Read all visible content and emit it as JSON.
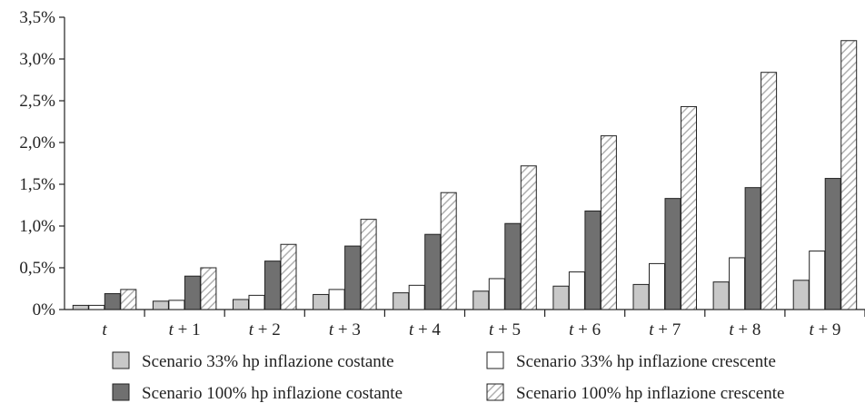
{
  "chart_data": {
    "type": "bar",
    "categories": [
      "t",
      "t + 1",
      "t + 2",
      "t + 3",
      "t + 4",
      "t + 5",
      "t + 6",
      "t + 7",
      "t + 8",
      "t + 9"
    ],
    "category_parts": [
      {
        "t": "t",
        "rest": ""
      },
      {
        "t": "t",
        "rest": " + 1"
      },
      {
        "t": "t",
        "rest": " + 2"
      },
      {
        "t": "t",
        "rest": " + 3"
      },
      {
        "t": "t",
        "rest": " + 4"
      },
      {
        "t": "t",
        "rest": " + 5"
      },
      {
        "t": "t",
        "rest": " + 6"
      },
      {
        "t": "t",
        "rest": " + 7"
      },
      {
        "t": "t",
        "rest": " + 8"
      },
      {
        "t": "t",
        "rest": " + 9"
      }
    ],
    "series": [
      {
        "name": "Scenario 33% hp inflazione costante",
        "style": "light-gray",
        "values": [
          0.05,
          0.1,
          0.12,
          0.18,
          0.2,
          0.22,
          0.28,
          0.3,
          0.33,
          0.35
        ]
      },
      {
        "name": "Scenario 33% hp inflazione crescente",
        "style": "white",
        "values": [
          0.05,
          0.11,
          0.17,
          0.24,
          0.29,
          0.37,
          0.45,
          0.55,
          0.62,
          0.7
        ]
      },
      {
        "name": "Scenario 100% hp inflazione costante",
        "style": "dark-gray",
        "values": [
          0.19,
          0.4,
          0.58,
          0.76,
          0.9,
          1.03,
          1.18,
          1.33,
          1.46,
          1.57
        ]
      },
      {
        "name": "Scenario 100% hp inflazione crescente",
        "style": "hatched",
        "values": [
          0.24,
          0.5,
          0.78,
          1.08,
          1.4,
          1.72,
          2.08,
          2.43,
          2.84,
          3.22
        ]
      }
    ],
    "ylim": [
      0,
      3.5
    ],
    "yticks": [
      {
        "value": 0,
        "label": "0%"
      },
      {
        "value": 0.5,
        "label": "0,5%"
      },
      {
        "value": 1.0,
        "label": "1,0%"
      },
      {
        "value": 1.5,
        "label": "1,5%"
      },
      {
        "value": 2.0,
        "label": "2,0%"
      },
      {
        "value": 2.5,
        "label": "2,5%"
      },
      {
        "value": 3.0,
        "label": "3,0%"
      },
      {
        "value": 3.5,
        "label": "3,5%"
      }
    ],
    "grid": false,
    "legend_position": "bottom",
    "colors": {
      "light-gray": "#c8c8c8",
      "white": "#ffffff",
      "dark-gray": "#707070",
      "hatch-fill": "#ffffff",
      "hatch-line": "#b0b0b0",
      "outline": "#222222"
    }
  }
}
